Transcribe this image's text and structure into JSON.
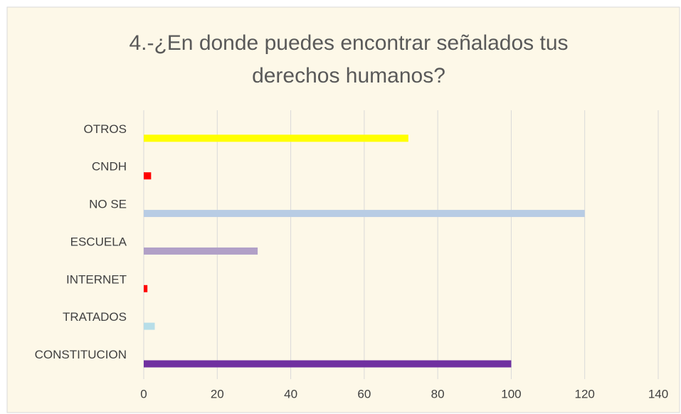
{
  "chart_data": {
    "type": "hbar",
    "title": "4.-¿En donde puedes encontrar señalados tus derechos humanos?",
    "categories": [
      "OTROS",
      "CNDH",
      "NO SE",
      "ESCUELA",
      "INTERNET",
      "TRATADOS",
      "CONSTITUCION"
    ],
    "values": [
      72,
      2,
      120,
      31,
      1,
      3,
      100
    ],
    "colors": [
      "#ffff00",
      "#ff0000",
      "#b8cce4",
      "#b1a0c7",
      "#ff0000",
      "#b7dee8",
      "#7030a0"
    ],
    "xlim": [
      0,
      140
    ],
    "xticks": [
      0,
      20,
      40,
      60,
      80,
      100,
      120,
      140
    ],
    "grid": true
  }
}
